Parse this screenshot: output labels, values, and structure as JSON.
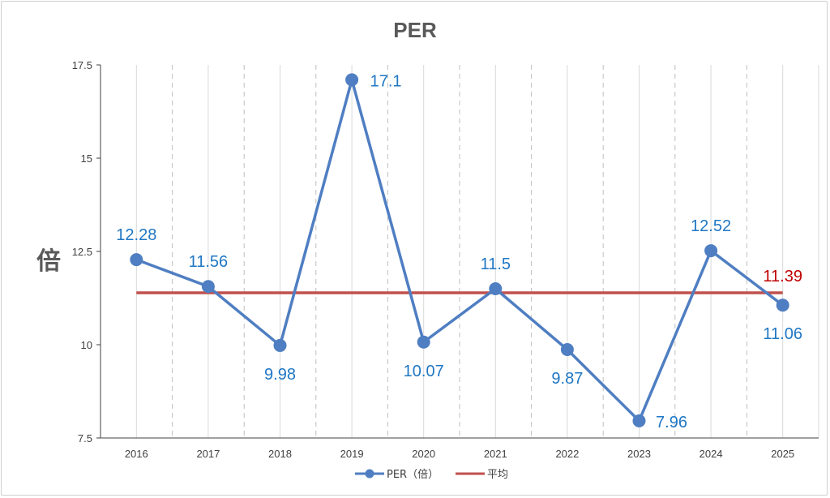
{
  "chart_data": {
    "type": "line",
    "title": "PER",
    "xlabel": "",
    "ylabel": "倍",
    "categories": [
      "2016",
      "2017",
      "2018",
      "2019",
      "2020",
      "2021",
      "2022",
      "2023",
      "2024",
      "2025"
    ],
    "ylim": [
      7.5,
      17.5
    ],
    "yticks": [
      "7.5",
      "10",
      "12.5",
      "15",
      "17.5"
    ],
    "grid": "vertical-dashed",
    "legend_position": "bottom",
    "series": [
      {
        "name": "PER（倍）",
        "values": [
          12.28,
          11.56,
          9.98,
          17.1,
          10.07,
          11.5,
          9.87,
          7.96,
          12.52,
          11.06
        ],
        "labels": [
          "12.28",
          "11.56",
          "9.98",
          "17.1",
          "10.07",
          "11.5",
          "9.87",
          "7.96",
          "12.52",
          "11.06"
        ],
        "color": "#4f7ec2",
        "marker": "circle"
      },
      {
        "name": "平均",
        "value": 11.39,
        "label": "11.39",
        "color": "#c0504d"
      }
    ],
    "data_label_color": "#1f77c4",
    "average_label_color": "#c00000"
  }
}
